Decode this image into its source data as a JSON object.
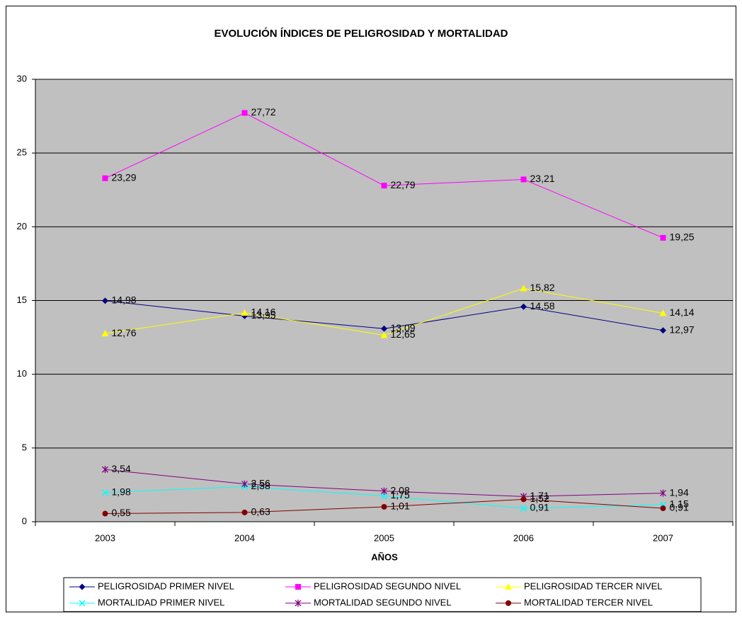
{
  "chart_data": {
    "type": "line",
    "title": "EVOLUCIÓN ÍNDICES DE PELIGROSIDAD Y MORTALIDAD",
    "x_label": "AÑOS",
    "categories": [
      "2003",
      "2004",
      "2005",
      "2006",
      "2007"
    ],
    "ylim": [
      0,
      30
    ],
    "yticks": [
      0,
      5,
      10,
      15,
      20,
      25,
      30
    ],
    "grid": true,
    "background": "#c0c0c0",
    "legend": "bottom",
    "series": [
      {
        "name": "PELIGROSIDAD PRIMER NIVEL",
        "color": "#000080",
        "label_color": "#0000ff",
        "marker": "diamond",
        "values": [
          14.98,
          13.95,
          13.09,
          14.58,
          12.97
        ],
        "value_labels": [
          "14,98",
          "13,95",
          "13,09",
          "14,58",
          "12,97"
        ]
      },
      {
        "name": "PELIGROSIDAD SEGUNDO NIVEL",
        "color": "#ff00ff",
        "label_color": "#ff00ff",
        "marker": "square",
        "values": [
          23.29,
          27.72,
          22.79,
          23.21,
          19.25
        ],
        "value_labels": [
          "23,29",
          "27,72",
          "22,79",
          "23,21",
          "19,25"
        ]
      },
      {
        "name": "PELIGROSIDAD TERCER NIVEL",
        "color": "#ffff00",
        "label_color": "#ffff00",
        "marker": "triangle",
        "values": [
          12.76,
          14.16,
          12.65,
          15.82,
          14.14
        ],
        "value_labels": [
          "12,76",
          "14,16",
          "12,65",
          "15,82",
          "14,14"
        ]
      },
      {
        "name": "MORTALIDAD PRIMER NIVEL",
        "color": "#00ffff",
        "label_color": "#00ffff",
        "marker": "x",
        "values": [
          1.98,
          2.38,
          1.75,
          0.91,
          1.15
        ],
        "value_labels": [
          "1,98",
          "2,38",
          "1,75",
          "0,91",
          "1,15"
        ]
      },
      {
        "name": "MORTALIDAD SEGUNDO NIVEL",
        "color": "#800080",
        "label_color": "#993366",
        "marker": "star",
        "values": [
          3.54,
          2.56,
          2.08,
          1.71,
          1.94
        ],
        "value_labels": [
          "3,54",
          "2,56",
          "2,08",
          "1,71",
          "1,94"
        ]
      },
      {
        "name": "MORTALIDAD TERCER NIVEL",
        "color": "#800000",
        "label_color": "#800000",
        "marker": "circle",
        "values": [
          0.55,
          0.63,
          1.01,
          1.52,
          0.91
        ],
        "value_labels": [
          "0,55",
          "0,63",
          "1,01",
          "1,52",
          "0,91"
        ]
      }
    ]
  }
}
